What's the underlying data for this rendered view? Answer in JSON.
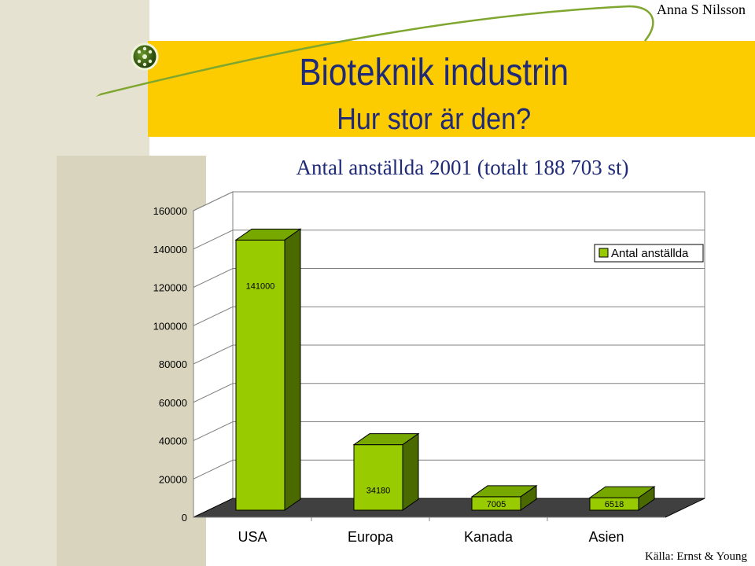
{
  "header": {
    "title": "Bioteknik industrin",
    "subtitle": "Hur stor är den?",
    "author": "Anna S Nilsson",
    "source": "Källa: Ernst & Young",
    "accent_color": "#fccc00"
  },
  "chart_data": {
    "type": "bar",
    "title": "Antal anställda 2001 (totalt 188 703 st)",
    "xlabel": "",
    "ylabel": "",
    "categories": [
      "USA",
      "Europa",
      "Kanada",
      "Asien"
    ],
    "series": [
      {
        "name": "Antal anställda",
        "values": [
          141000,
          34180,
          7005,
          6518
        ],
        "color": "#99cc00"
      }
    ],
    "data_labels": [
      "141000",
      "34180",
      "7005",
      "6518"
    ],
    "yticks": [
      "0",
      "20000",
      "40000",
      "60000",
      "80000",
      "100000",
      "120000",
      "140000",
      "160000"
    ],
    "ylim": [
      0,
      160000
    ],
    "grid": true,
    "legend": "top-right"
  }
}
